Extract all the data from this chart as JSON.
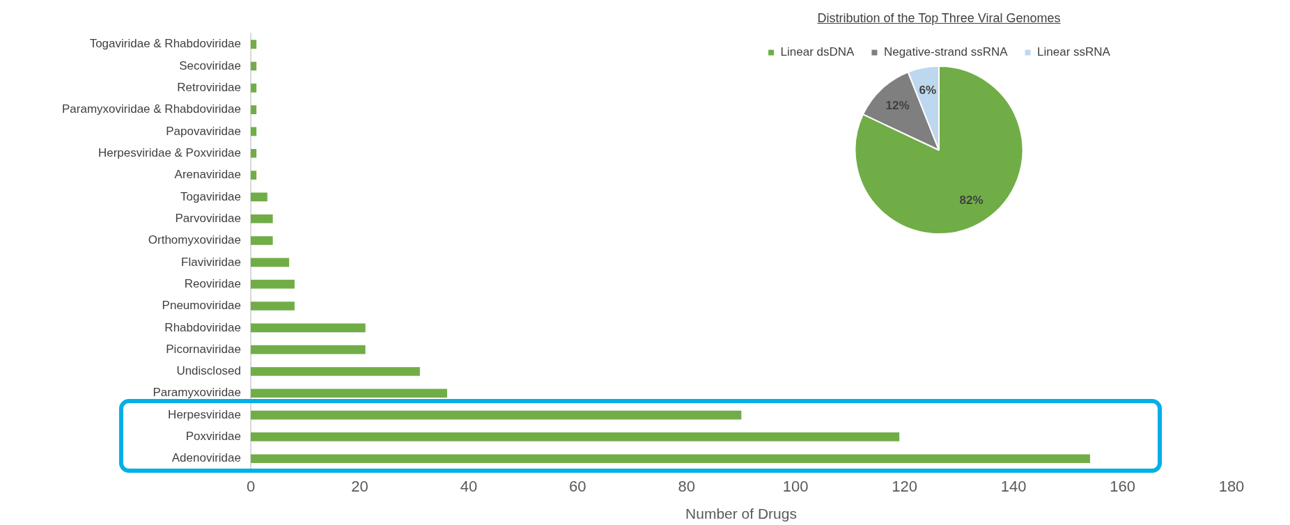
{
  "chart_data": [
    {
      "type": "bar",
      "orientation": "horizontal",
      "xlabel": "Number of Drugs",
      "categories": [
        "Togaviridae & Rhabdoviridae",
        "Secoviridae",
        "Retroviridae",
        "Paramyxoviridae & Rhabdoviridae",
        "Papovaviridae",
        "Herpesviridae & Poxviridae",
        "Arenaviridae",
        "Togaviridae",
        "Parvoviridae",
        "Orthomyxoviridae",
        "Flaviviridae",
        "Reoviridae",
        "Pneumoviridae",
        "Rhabdoviridae",
        "Picornaviridae",
        "Undisclosed",
        "Paramyxoviridae",
        "Herpesviridae",
        "Poxviridae",
        "Adenoviridae"
      ],
      "values": [
        1,
        1,
        1,
        1,
        1,
        1,
        1,
        3,
        4,
        4,
        7,
        8,
        8,
        21,
        21,
        31,
        36,
        90,
        119,
        154
      ],
      "color": "#70ad47",
      "xlim": [
        0,
        180
      ],
      "xticks": [
        0,
        20,
        40,
        60,
        80,
        100,
        120,
        140,
        160,
        180
      ],
      "grid": false,
      "legend": false
    },
    {
      "type": "pie",
      "title": "Distribution of the Top Three Viral Genomes",
      "categories": [
        "Linear dsDNA",
        "Negative-strand ssRNA",
        "Linear ssRNA"
      ],
      "values": [
        82,
        12,
        6
      ],
      "colors": [
        "#70ad47",
        "#7f7f7f",
        "#bdd7ee"
      ],
      "value_labels": [
        "82%",
        "12%",
        "6%"
      ],
      "legend": "top"
    }
  ]
}
